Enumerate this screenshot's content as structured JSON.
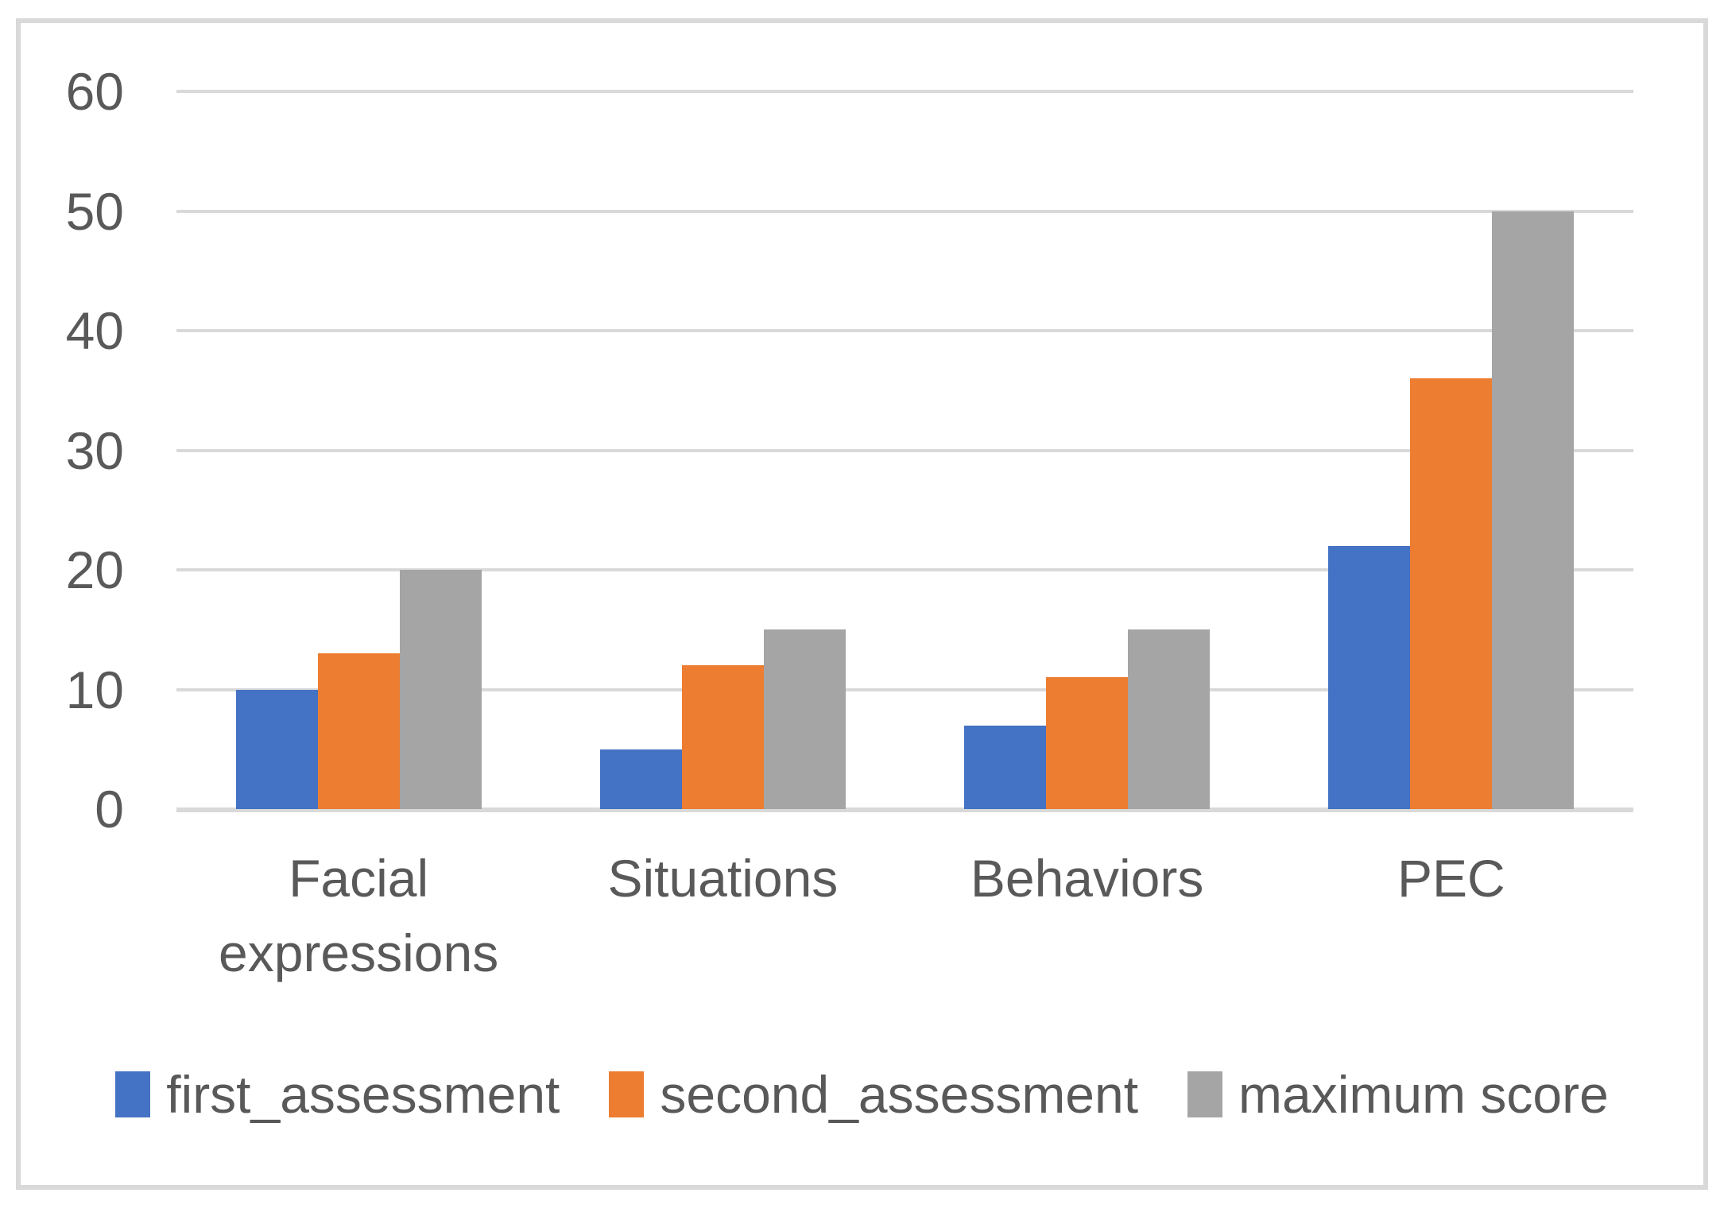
{
  "chart_data": {
    "type": "bar",
    "title": "",
    "xlabel": "",
    "ylabel": "",
    "categories": [
      "Facial expressions",
      "Situations",
      "Behaviors",
      "PEC"
    ],
    "series": [
      {
        "name": "first_assessment",
        "color": "#4472C4",
        "values": [
          10,
          5,
          7,
          22
        ]
      },
      {
        "name": "second_assessment",
        "color": "#ED7D31",
        "values": [
          13,
          12,
          11,
          36
        ]
      },
      {
        "name": "maximum score",
        "color": "#A5A5A5",
        "values": [
          20,
          15,
          15,
          50
        ]
      }
    ],
    "yticks": [
      0,
      10,
      20,
      30,
      40,
      50,
      60
    ],
    "ylim": [
      0,
      60
    ],
    "grid": true,
    "legend_position": "bottom"
  },
  "style_colors": {
    "gridline": "#D9D9D9",
    "frame_border": "#D9D9D9",
    "text": "#595959",
    "background": "#FFFFFF"
  }
}
